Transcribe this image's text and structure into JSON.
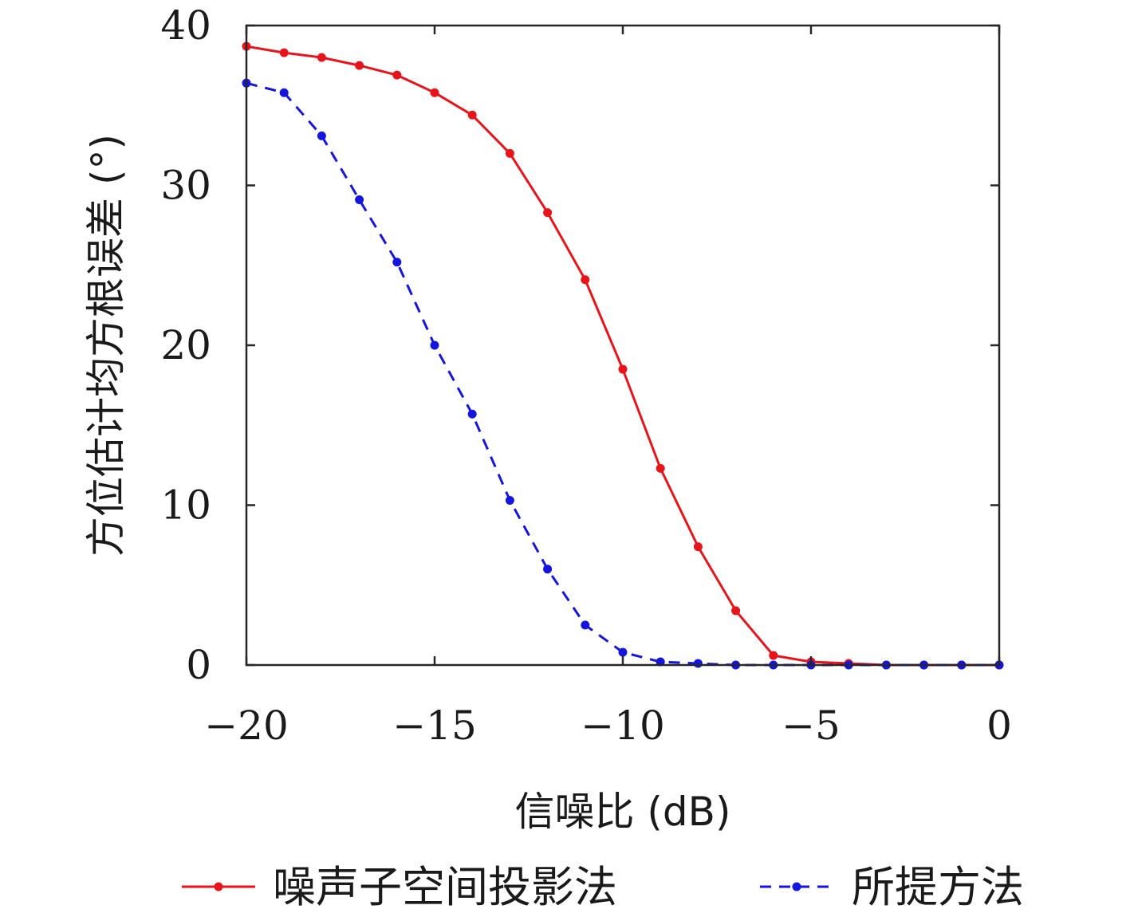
{
  "chart_data": {
    "type": "line",
    "xlabel": "信噪比 (dB)",
    "ylabel": "方位估计均方根误差 (°)",
    "xlim": [
      -20,
      0
    ],
    "ylim": [
      0,
      40
    ],
    "xticks": [
      -20,
      -15,
      -10,
      -5,
      0
    ],
    "xtick_labels": [
      "−20",
      "−15",
      "−10",
      "−5",
      "0"
    ],
    "yticks": [
      0,
      10,
      20,
      30,
      40
    ],
    "ytick_labels": [
      "0",
      "10",
      "20",
      "30",
      "40"
    ],
    "grid": false,
    "legend_position": "bottom",
    "x": [
      -20,
      -19,
      -18,
      -17,
      -16,
      -15,
      -14,
      -13,
      -12,
      -11,
      -10,
      -9,
      -8,
      -7,
      -6,
      -5,
      -4,
      -3,
      -2,
      -1,
      0
    ],
    "series": [
      {
        "name": "噪声子空间投影法",
        "color": "#e8141a",
        "dash": "solid",
        "values": [
          38.7,
          38.3,
          38.0,
          37.5,
          36.9,
          35.8,
          34.4,
          32.0,
          28.3,
          24.1,
          18.5,
          12.3,
          7.4,
          3.4,
          0.6,
          0.2,
          0.1,
          0.0,
          0.0,
          0.0,
          0.0
        ]
      },
      {
        "name": "所提方法",
        "color": "#1515e0",
        "dash": "dashed",
        "values": [
          36.4,
          35.8,
          33.1,
          29.1,
          25.2,
          20.0,
          15.7,
          10.3,
          6.0,
          2.5,
          0.8,
          0.2,
          0.1,
          0.0,
          0.0,
          0.0,
          0.0,
          0.0,
          0.0,
          0.0,
          0.0
        ]
      }
    ]
  }
}
